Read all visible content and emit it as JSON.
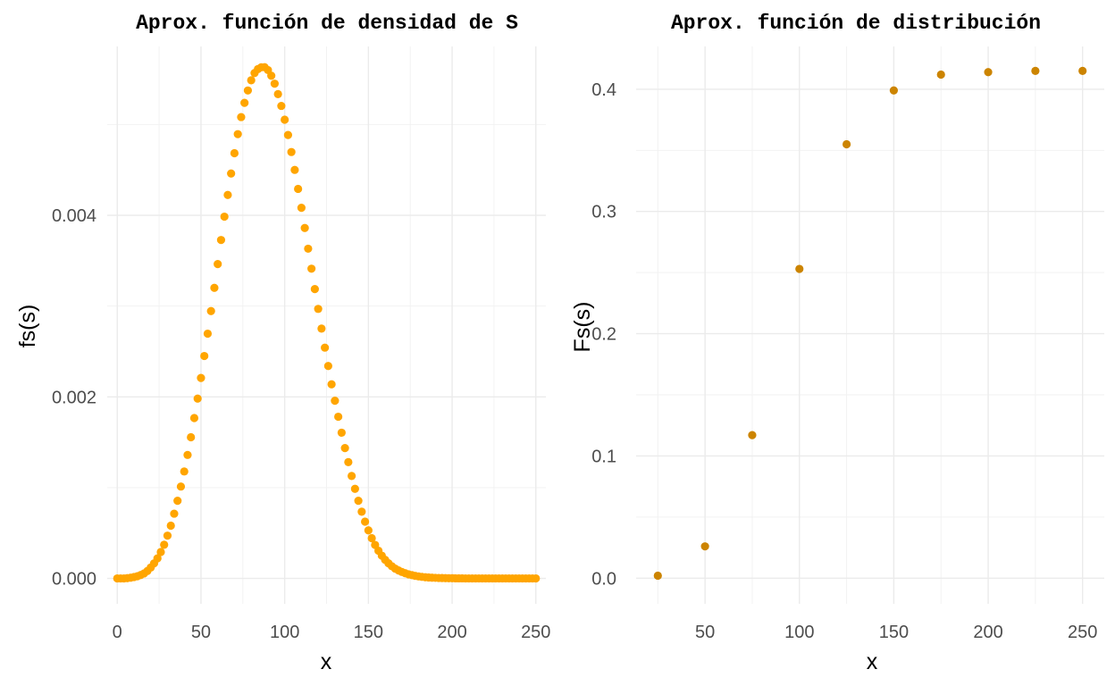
{
  "chart_data": [
    {
      "type": "scatter",
      "title": "Aprox. función de densidad de S",
      "xlabel": "x",
      "ylabel": "fs(s)",
      "xlim": [
        -6,
        256
      ],
      "ylim": [
        -0.00028,
        0.00586
      ],
      "xticks": [
        0,
        50,
        100,
        150,
        200,
        250
      ],
      "xtick_labels": [
        "0",
        "50",
        "100",
        "150",
        "200",
        "250"
      ],
      "yticks": [
        0,
        0.002,
        0.004
      ],
      "ytick_labels": [
        "0.000",
        "0.002",
        "0.004"
      ],
      "grid": true,
      "color": "#FFA500",
      "series": [
        {
          "x": [
            0,
            2,
            4,
            6,
            8,
            10,
            12,
            14,
            16,
            18,
            20,
            22,
            24,
            26,
            28,
            30,
            32,
            34,
            36,
            38,
            40,
            42,
            44,
            46,
            48,
            50,
            52,
            54,
            56,
            58,
            60,
            62,
            64,
            66,
            68,
            70,
            72,
            74,
            76,
            78,
            80,
            82,
            84,
            86,
            88,
            90,
            92,
            94,
            96,
            98,
            100,
            102,
            104,
            106,
            108,
            110,
            112,
            114,
            116,
            118,
            120,
            122,
            124,
            126,
            128,
            130,
            132,
            134,
            136,
            138,
            140,
            142,
            144,
            146,
            148,
            150,
            152,
            154,
            156,
            158,
            160,
            162,
            164,
            166,
            168,
            170,
            172,
            174,
            176,
            178,
            180,
            182,
            184,
            186,
            188,
            190,
            192,
            194,
            196,
            198,
            200,
            202,
            204,
            206,
            208,
            210,
            212,
            214,
            216,
            218,
            220,
            222,
            224,
            226,
            228,
            230,
            232,
            234,
            236,
            238,
            240,
            242,
            244,
            246,
            248,
            250
          ],
          "y": [
            0,
            0,
            0,
            3e-06,
            8e-06,
            1.5e-05,
            2.4e-05,
            3.7e-05,
            5.5e-05,
            8.2e-05,
            0.00012,
            0.000166,
            0.000221,
            0.000291,
            0.000371,
            0.000471,
            0.000581,
            0.000713,
            0.000855,
            0.001012,
            0.001178,
            0.00136,
            0.001555,
            0.001767,
            0.001981,
            0.002208,
            0.00245,
            0.002696,
            0.002945,
            0.003201,
            0.003463,
            0.003728,
            0.003985,
            0.004224,
            0.00446,
            0.004684,
            0.004894,
            0.005082,
            0.005239,
            0.005375,
            0.005487,
            0.005567,
            0.00561,
            0.00563,
            0.005631,
            0.0056,
            0.005538,
            0.00545,
            0.005335,
            0.005205,
            0.005053,
            0.004885,
            0.004697,
            0.0045,
            0.004291,
            0.004083,
            0.00386,
            0.003632,
            0.003412,
            0.003187,
            0.002969,
            0.002752,
            0.002542,
            0.00234,
            0.002138,
            0.001957,
            0.001781,
            0.001605,
            0.001436,
            0.001281,
            0.001128,
            0.000987,
            0.000855,
            0.000735,
            0.000625,
            0.000529,
            0.000443,
            0.000369,
            0.000305,
            0.000251,
            0.000205,
            0.000167,
            0.000134,
            0.000108,
            8.8e-05,
            7.1e-05,
            5.7e-05,
            4.5e-05,
            3.6e-05,
            2.8e-05,
            2.2e-05,
            1.7e-05,
            1.3e-05,
            1e-05,
            8e-06,
            6e-06,
            5e-06,
            4e-06,
            3e-06,
            2e-06,
            2e-06,
            1e-06,
            1e-06,
            1e-06,
            0,
            0,
            0,
            0,
            0,
            0,
            0,
            0,
            0,
            0,
            0,
            0,
            0,
            0,
            0,
            0,
            0,
            0,
            0,
            0,
            0,
            0
          ]
        }
      ]
    },
    {
      "type": "scatter",
      "title": "Aprox. función de distribución",
      "xlabel": "x",
      "ylabel": "Fs(s)",
      "xlim": [
        13.5,
        261.5
      ],
      "ylim": [
        -0.021,
        0.435
      ],
      "xticks": [
        50,
        100,
        150,
        200,
        250
      ],
      "xtick_labels": [
        "50",
        "100",
        "150",
        "200",
        "250"
      ],
      "yticks": [
        0,
        0.1,
        0.2,
        0.3,
        0.4
      ],
      "ytick_labels": [
        "0.0",
        "0.1",
        "0.2",
        "0.3",
        "0.4"
      ],
      "grid": true,
      "color": "#CC8400",
      "series": [
        {
          "x": [
            25,
            50,
            75,
            100,
            125,
            150,
            175,
            200,
            225,
            250
          ],
          "y": [
            0.002,
            0.026,
            0.117,
            0.253,
            0.355,
            0.399,
            0.412,
            0.414,
            0.415,
            0.415
          ]
        }
      ]
    }
  ]
}
